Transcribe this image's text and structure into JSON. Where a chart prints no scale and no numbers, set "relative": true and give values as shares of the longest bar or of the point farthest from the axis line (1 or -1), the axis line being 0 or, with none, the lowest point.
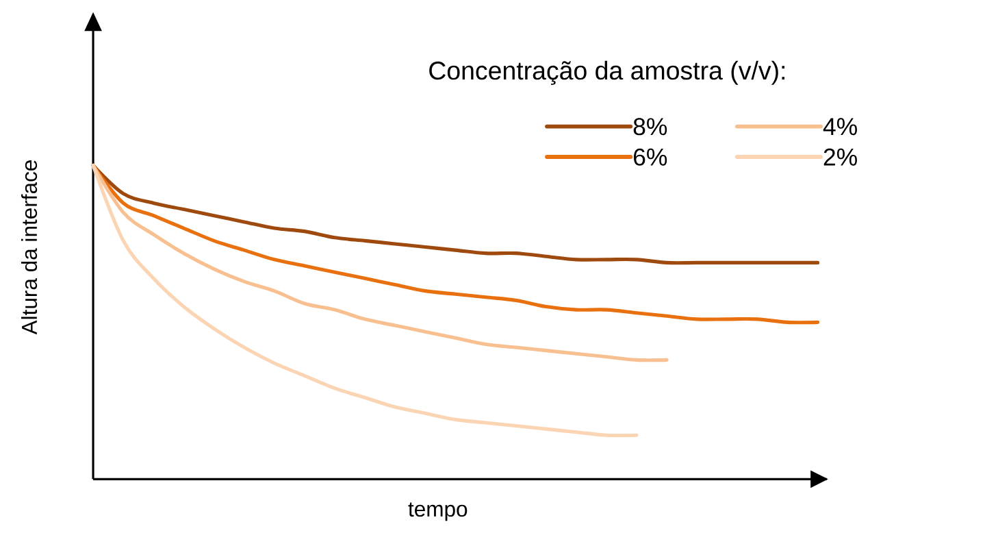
{
  "chart_data": {
    "type": "line",
    "relative": true,
    "xlabel": "tempo",
    "ylabel": "Altura da interface",
    "legend_title": "Concentração da amostra (v/v):",
    "legend": "top right",
    "line_style": "solid",
    "categories": [
      null,
      null,
      null,
      null,
      null,
      null,
      null,
      null,
      null,
      null,
      null,
      null,
      null,
      null,
      null,
      null,
      null,
      null,
      null,
      null,
      null,
      null,
      null,
      null,
      null
    ],
    "series": [
      {
        "name": "8%",
        "color": "#9e4a0e",
        "values": [
          1.0,
          0.91,
          0.88,
          0.86,
          0.84,
          0.82,
          0.8,
          0.79,
          0.77,
          0.76,
          0.75,
          0.74,
          0.73,
          0.72,
          0.72,
          0.71,
          0.7,
          0.7,
          0.7,
          0.69,
          0.69,
          0.69,
          0.69,
          0.69,
          0.69
        ]
      },
      {
        "name": "6%",
        "color": "#e8700f",
        "values": [
          1.0,
          0.88,
          0.84,
          0.8,
          0.76,
          0.73,
          0.7,
          0.68,
          0.66,
          0.64,
          0.62,
          0.6,
          0.59,
          0.58,
          0.57,
          0.55,
          0.54,
          0.54,
          0.53,
          0.52,
          0.51,
          0.51,
          0.51,
          0.5,
          0.5
        ]
      },
      {
        "name": "4%",
        "color": "#f8c090",
        "values": [
          1.0,
          0.85,
          0.78,
          0.72,
          0.67,
          0.63,
          0.6,
          0.56,
          0.54,
          0.51,
          0.49,
          0.47,
          0.45,
          0.43,
          0.42,
          0.41,
          0.4,
          0.39,
          0.38,
          0.38,
          null,
          null,
          null,
          null,
          null
        ]
      },
      {
        "name": "2%",
        "color": "#fbd5b3",
        "values": [
          1.0,
          0.76,
          0.64,
          0.55,
          0.48,
          0.42,
          0.37,
          0.33,
          0.29,
          0.26,
          0.23,
          0.21,
          0.19,
          0.18,
          0.17,
          0.16,
          0.15,
          0.14,
          0.14,
          null,
          null,
          null,
          null,
          null,
          null
        ]
      }
    ]
  }
}
